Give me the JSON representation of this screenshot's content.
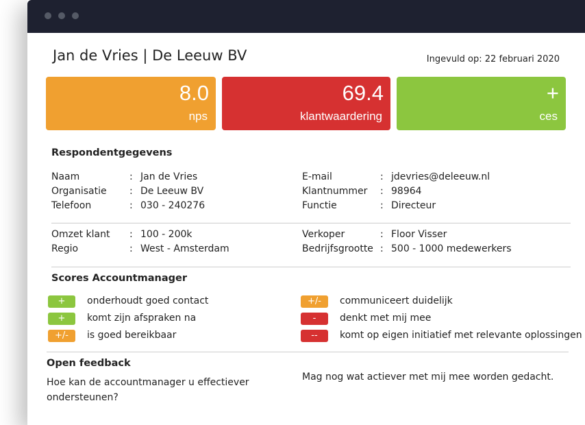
{
  "header": {
    "title": "Jan de Vries | De Leeuw BV",
    "date": "Ingevuld op: 22 februari 2020"
  },
  "scores": [
    {
      "value": "8.0",
      "label": "nps",
      "color": "#f0a030"
    },
    {
      "value": "69.4",
      "label": "klantwaardering",
      "color": "#d63131"
    },
    {
      "value": "+",
      "label": "ces",
      "color": "#8cc63f"
    }
  ],
  "respondent": {
    "title": "Respondentgegevens",
    "separator": ":",
    "blocks": [
      {
        "left": [
          {
            "label": "Naam",
            "value": "Jan de Vries"
          },
          {
            "label": "Organisatie",
            "value": "De Leeuw BV"
          },
          {
            "label": "Telefoon",
            "value": "030 - 240276"
          }
        ],
        "right": [
          {
            "label": "E-mail",
            "value": "jdevries@deleeuw.nl"
          },
          {
            "label": "Klantnummer",
            "value": "98964"
          },
          {
            "label": "Functie",
            "value": "Directeur"
          }
        ]
      },
      {
        "left": [
          {
            "label": "Omzet klant",
            "value": "100 - 200k"
          },
          {
            "label": "Regio",
            "value": "West - Amsterdam"
          }
        ],
        "right": [
          {
            "label": "Verkoper",
            "value": "Floor Visser"
          },
          {
            "label": "Bedrijfsgrootte",
            "value": "500 - 1000 medewerkers"
          }
        ]
      }
    ]
  },
  "accountmanager": {
    "title": "Scores Accountmanager",
    "left": [
      {
        "badge": "+",
        "text": "onderhoudt goed contact",
        "color": "#8cc63f"
      },
      {
        "badge": "+",
        "text": "komt zijn afspraken na",
        "color": "#8cc63f"
      },
      {
        "badge": "+/-",
        "text": "is goed bereikbaar",
        "color": "#f0a030"
      }
    ],
    "right": [
      {
        "badge": "+/-",
        "text": "communiceert duidelijk",
        "color": "#f0a030"
      },
      {
        "badge": "-",
        "text": "denkt met mij mee",
        "color": "#d63131"
      },
      {
        "badge": "--",
        "text": "komt op eigen initiatief met relevante oplossingen",
        "color": "#d63131"
      }
    ]
  },
  "feedback": {
    "title": "Open feedback",
    "question": "Hoe kan de accountmanager u effectiever ondersteunen?",
    "answer": "Mag nog wat actiever met mij mee worden gedacht."
  }
}
